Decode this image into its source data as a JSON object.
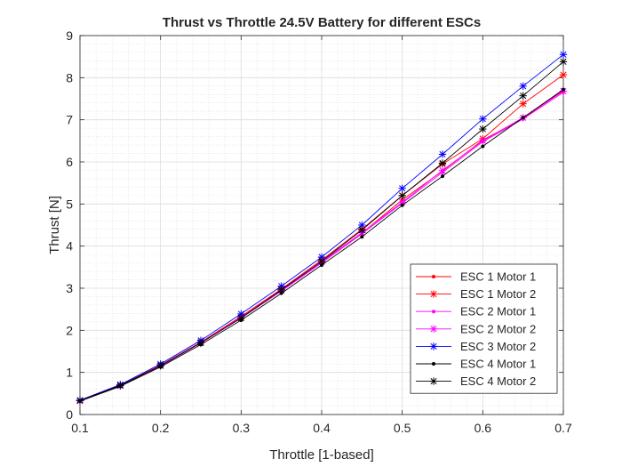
{
  "chart_data": {
    "type": "line",
    "title": "Thrust vs Throttle 24.5V Battery for different ESCs",
    "xlabel": "Throttle [1-based]",
    "ylabel": "Thrust [N]",
    "xlim": [
      0.1,
      0.7
    ],
    "ylim": [
      0,
      9
    ],
    "xticks": [
      "0.1",
      "0.2",
      "0.3",
      "0.4",
      "0.5",
      "0.6",
      "0.7"
    ],
    "yticks": [
      "0",
      "1",
      "2",
      "3",
      "4",
      "5",
      "6",
      "7",
      "8",
      "9"
    ],
    "grid": true,
    "minor_grid": true,
    "legend_position": "bottom-right",
    "x": [
      0.1,
      0.15,
      0.2,
      0.25,
      0.3,
      0.35,
      0.4,
      0.45,
      0.5,
      0.55,
      0.6,
      0.65,
      0.7
    ],
    "series": [
      {
        "name": "ESC 1 Motor 1",
        "color": "#ff0000",
        "marker": "dot",
        "values": [
          0.33,
          0.69,
          1.17,
          1.71,
          2.31,
          2.95,
          3.63,
          4.31,
          5.1,
          5.78,
          6.52,
          7.03,
          7.7
        ]
      },
      {
        "name": "ESC 1 Motor 2",
        "color": "#ff0000",
        "marker": "star",
        "values": [
          0.33,
          0.69,
          1.17,
          1.72,
          2.33,
          2.98,
          3.67,
          4.4,
          5.2,
          5.95,
          6.55,
          7.38,
          8.07
        ]
      },
      {
        "name": "ESC 2 Motor 1",
        "color": "#ff00ff",
        "marker": "dot",
        "values": [
          0.32,
          0.68,
          1.15,
          1.7,
          2.29,
          2.93,
          3.6,
          4.29,
          5.02,
          5.75,
          6.48,
          7.02,
          7.65
        ]
      },
      {
        "name": "ESC 2 Motor 2",
        "color": "#ff00ff",
        "marker": "star",
        "values": [
          0.32,
          0.68,
          1.16,
          1.71,
          2.3,
          2.95,
          3.62,
          4.32,
          5.04,
          5.8,
          6.5,
          7.05,
          7.68
        ]
      },
      {
        "name": "ESC 3 Motor 2",
        "color": "#0000ff",
        "marker": "star",
        "values": [
          0.34,
          0.71,
          1.2,
          1.76,
          2.39,
          3.05,
          3.74,
          4.5,
          5.37,
          6.18,
          7.02,
          7.8,
          8.55
        ]
      },
      {
        "name": "ESC 4 Motor 1",
        "color": "#000000",
        "marker": "dot",
        "values": [
          0.32,
          0.67,
          1.13,
          1.66,
          2.24,
          2.88,
          3.55,
          4.22,
          4.97,
          5.66,
          6.37,
          7.05,
          7.72
        ]
      },
      {
        "name": "ESC 4 Motor 2",
        "color": "#000000",
        "marker": "star",
        "values": [
          0.33,
          0.69,
          1.16,
          1.7,
          2.29,
          2.96,
          3.64,
          4.38,
          5.2,
          5.97,
          6.78,
          7.57,
          8.38
        ]
      }
    ]
  }
}
